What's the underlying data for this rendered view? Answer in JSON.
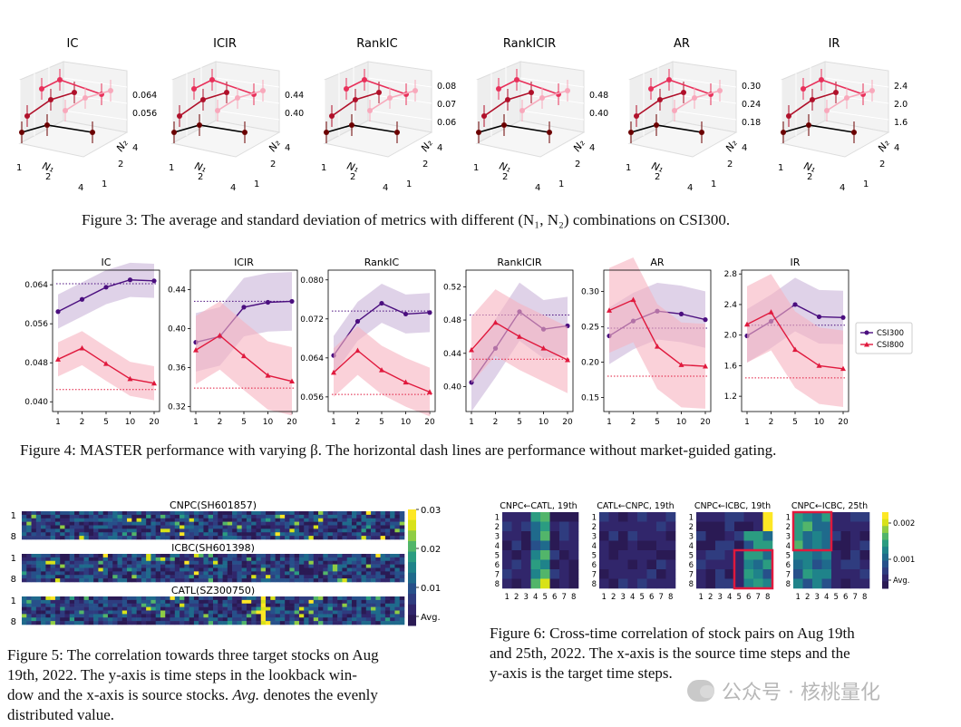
{
  "fig3": {
    "caption": "Figure 3: The average and standard deviation of metrics with different (N₁, N₂) combinations on CSI300.",
    "axis_labels": {
      "n1": "N₁",
      "n2": "N₂",
      "n_ticks": [
        "1",
        "2",
        "4"
      ]
    },
    "panels": [
      {
        "title": "IC",
        "zticks": [
          "0.064",
          "0.056"
        ]
      },
      {
        "title": "ICIR",
        "zticks": [
          "0.44",
          "0.40"
        ]
      },
      {
        "title": "RankIC",
        "zticks": [
          "0.08",
          "0.07",
          "0.06"
        ]
      },
      {
        "title": "RankICIR",
        "zticks": [
          "0.48",
          "0.40"
        ]
      },
      {
        "title": "AR",
        "zticks": [
          "0.30",
          "0.24",
          "0.18"
        ]
      },
      {
        "title": "IR",
        "zticks": [
          "2.4",
          "2.0",
          "1.6"
        ]
      }
    ]
  },
  "fig4": {
    "caption": "Figure 4: MASTER performance with varying β. The horizontal dash lines are performance without market-guided gating.",
    "legend": [
      "CSI300",
      "CSI800"
    ],
    "colors": {
      "csi300": "#4b0f7f",
      "csi800": "#e0193d",
      "band300": "#c9b4d9",
      "band800": "#f7b3c0"
    }
  },
  "chart_data": [
    {
      "type": "line",
      "title": "IC",
      "categories": [
        "1",
        "2",
        "5",
        "10",
        "20"
      ],
      "ylim": [
        0.038,
        0.067
      ],
      "yticks": [
        "0.064",
        "0.056",
        "0.048",
        "0.040"
      ],
      "series": [
        {
          "name": "CSI300",
          "values": [
            0.0585,
            0.061,
            0.0635,
            0.065,
            0.0648
          ],
          "band": 0.0035,
          "baseline": 0.0642
        },
        {
          "name": "CSI800",
          "values": [
            0.0487,
            0.051,
            0.0478,
            0.0447,
            0.0438
          ],
          "band": 0.0035,
          "baseline": 0.0425
        }
      ]
    },
    {
      "type": "line",
      "title": "ICIR",
      "categories": [
        "1",
        "2",
        "5",
        "10",
        "20"
      ],
      "ylim": [
        0.315,
        0.46
      ],
      "yticks": [
        "0.44",
        "0.40",
        "0.36",
        "0.32"
      ],
      "series": [
        {
          "name": "CSI300",
          "values": [
            0.386,
            0.392,
            0.422,
            0.427,
            0.428
          ],
          "band": 0.03,
          "baseline": 0.428
        },
        {
          "name": "CSI800",
          "values": [
            0.378,
            0.393,
            0.372,
            0.352,
            0.346
          ],
          "band": 0.035,
          "baseline": 0.339
        }
      ]
    },
    {
      "type": "line",
      "title": "RankIC",
      "categories": [
        "1",
        "2",
        "5",
        "10",
        "20"
      ],
      "ylim": [
        0.053,
        0.082
      ],
      "yticks": [
        "0.080",
        "0.072",
        "0.064",
        "0.056"
      ],
      "series": [
        {
          "name": "CSI300",
          "values": [
            0.0645,
            0.0715,
            0.0752,
            0.073,
            0.0733
          ],
          "band": 0.004,
          "baseline": 0.0736
        },
        {
          "name": "CSI800",
          "values": [
            0.061,
            0.0655,
            0.0615,
            0.059,
            0.057
          ],
          "band": 0.005,
          "baseline": 0.0565
        }
      ]
    },
    {
      "type": "line",
      "title": "RankICIR",
      "categories": [
        "1",
        "2",
        "5",
        "10",
        "20"
      ],
      "ylim": [
        0.37,
        0.54
      ],
      "yticks": [
        "0.52",
        "0.48",
        "0.44",
        "0.40"
      ],
      "series": [
        {
          "name": "CSI300",
          "values": [
            0.405,
            0.446,
            0.49,
            0.469,
            0.473
          ],
          "band": 0.035,
          "baseline": 0.486
        },
        {
          "name": "CSI800",
          "values": [
            0.444,
            0.477,
            0.46,
            0.446,
            0.432
          ],
          "band": 0.04,
          "baseline": 0.433
        }
      ]
    },
    {
      "type": "line",
      "title": "AR",
      "categories": [
        "1",
        "2",
        "5",
        "10",
        "20"
      ],
      "ylim": [
        0.13,
        0.33
      ],
      "yticks": [
        "0.30",
        "0.25",
        "0.20",
        "0.15"
      ],
      "series": [
        {
          "name": "CSI300",
          "values": [
            0.237,
            0.258,
            0.272,
            0.268,
            0.26
          ],
          "band": 0.04,
          "baseline": 0.248
        },
        {
          "name": "CSI800",
          "values": [
            0.273,
            0.288,
            0.222,
            0.196,
            0.194
          ],
          "band": 0.06,
          "baseline": 0.18
        }
      ]
    },
    {
      "type": "line",
      "title": "IR",
      "categories": [
        "1",
        "2",
        "5",
        "10",
        "20"
      ],
      "ylim": [
        1.0,
        2.85
      ],
      "yticks": [
        "2.8",
        "2.4",
        "2.0",
        "1.6",
        "1.2"
      ],
      "series": [
        {
          "name": "CSI300",
          "values": [
            1.99,
            2.18,
            2.4,
            2.24,
            2.23
          ],
          "band": 0.35,
          "baseline": 2.13
        },
        {
          "name": "CSI800",
          "values": [
            2.14,
            2.3,
            1.81,
            1.6,
            1.56
          ],
          "band": 0.5,
          "baseline": 1.44
        }
      ]
    }
  ],
  "fig5": {
    "caption_a": "Figure 5: The correlation towards three target stocks on Aug",
    "caption_b": "19th, 2022. The y-axis is time steps in the lookback win-",
    "caption_c": "dow and the x-axis is source stocks.",
    "caption_avg": "Avg.",
    "caption_d": " denotes the evenly",
    "caption_e": "distributed value.",
    "panels": [
      "CNPC(SH601857)",
      "ICBC(SH601398)",
      "CATL(SZ300750)"
    ],
    "yticks": [
      "1",
      "8"
    ],
    "colorbar": [
      "0.03",
      "0.02",
      "0.01",
      "Avg."
    ]
  },
  "fig6": {
    "caption_a": "Figure 6: Cross-time correlation of stock pairs on Aug 19th",
    "caption_b": "and 25th, 2022. The x-axis is the source time steps and the",
    "caption_c": "y-axis is the target time steps.",
    "panels": [
      "CNPC←CATL, 19th",
      "CATL←CNPC, 19th",
      "CNPC←ICBC, 19th",
      "CNPC←ICBC, 25th"
    ],
    "ticks": [
      "1",
      "2",
      "3",
      "4",
      "5",
      "6",
      "7",
      "8"
    ],
    "colorbar": [
      "0.002",
      "0.001",
      "Avg."
    ]
  },
  "watermark": "公众号 · 核桃量化"
}
